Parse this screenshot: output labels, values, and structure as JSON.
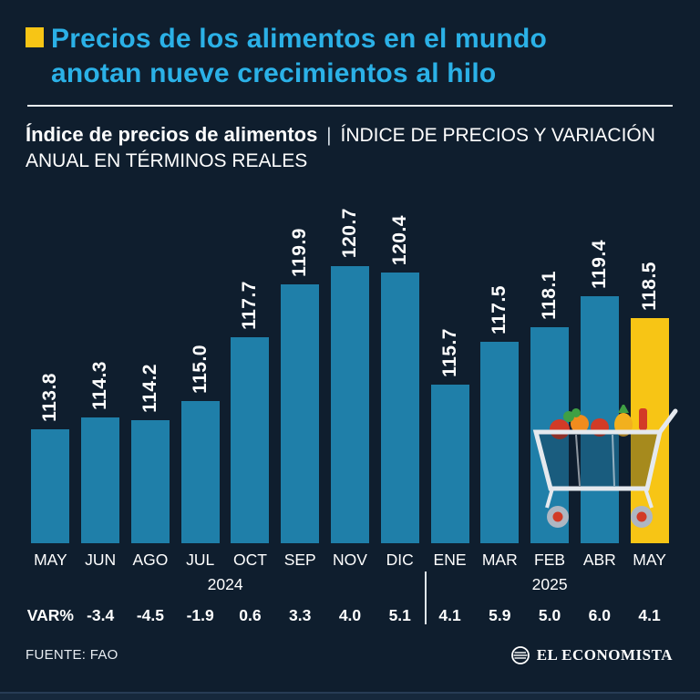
{
  "theme": {
    "background": "#0f1e2e",
    "title_color": "#2bb1e7",
    "accent_yellow": "#f7c515",
    "bar_color": "#1f7fa9",
    "text_color": "#ffffff"
  },
  "header": {
    "title_line1": "Precios de los alimentos en el mundo",
    "title_line2": "anotan nueve crecimientos al hilo"
  },
  "subtitle": {
    "bold": "Índice de precios de alimentos",
    "sep": "|",
    "rest": "ÍNDICE DE PRECIOS Y VARIACIÓN ANUAL EN TÉRMINOS REALES"
  },
  "chart_data": {
    "type": "bar",
    "title": "Índice de precios de alimentos",
    "categories": [
      "MAY",
      "JUN",
      "AGO",
      "JUL",
      "OCT",
      "SEP",
      "NOV",
      "DIC",
      "ENE",
      "MAR",
      "FEB",
      "ABR",
      "MAY"
    ],
    "values": [
      113.8,
      114.3,
      114.2,
      115.0,
      117.7,
      119.9,
      120.7,
      120.4,
      115.7,
      117.5,
      118.1,
      119.4,
      118.5
    ],
    "var_label": "VAR%",
    "var_values": [
      "-3.4",
      "-4.5",
      "-1.9",
      "0.6",
      "3.3",
      "4.0",
      "5.1",
      "4.1",
      "5.9",
      "5.0",
      "6.0",
      "4.1"
    ],
    "years": [
      "2024",
      "2025"
    ],
    "year_group_split_index": 8,
    "highlight_index": 12,
    "bar_color": "#1f7fa9",
    "highlight_color": "#f7c515",
    "ylim": [
      109,
      122
    ],
    "grid": false,
    "legend": false,
    "value_labels_rotated": true
  },
  "footer": {
    "source": "FUENTE: FAO",
    "brand": "EL ECONOMISTA"
  },
  "icons": {
    "shopping_cart": "shopping-cart-illustration",
    "brand_logo": "el-economista-logo"
  }
}
